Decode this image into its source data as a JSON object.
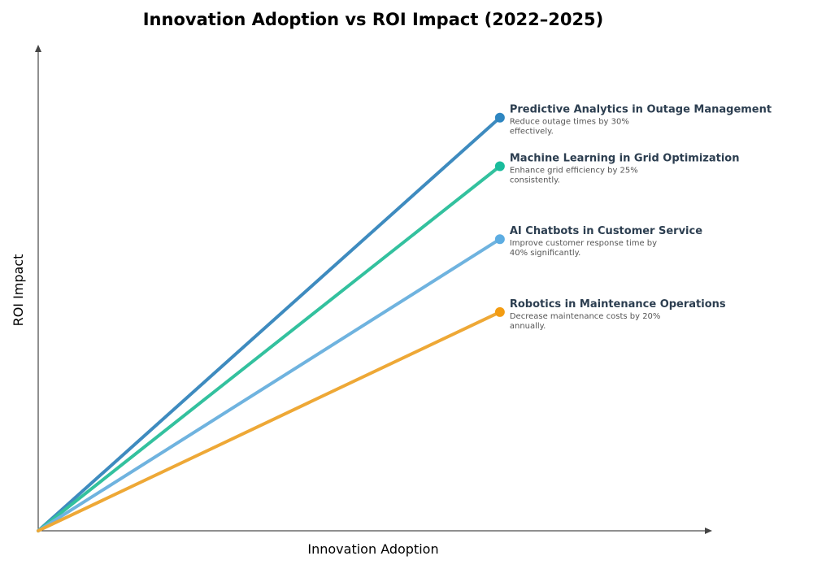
{
  "chart_data": {
    "type": "line",
    "title": "Innovation Adoption vs ROI Impact (2022–2025)",
    "xlabel": "Innovation Adoption",
    "ylabel": "ROI Impact",
    "xlim": [
      0,
      1
    ],
    "ylim": [
      0,
      1
    ],
    "grid": false,
    "legend": "none",
    "series": [
      {
        "name": "Predictive Analytics in Outage Management",
        "description_lines": [
          "Reduce outage times by 30%",
          "effectively."
        ],
        "color": "#2E86C1",
        "line_color": "#3E8BBF",
        "points": [
          [
            0,
            0
          ],
          [
            0.685,
            0.85
          ]
        ]
      },
      {
        "name": "Machine Learning in Grid Optimization",
        "description_lines": [
          "Enhance grid efficiency by 25%",
          "consistently."
        ],
        "color": "#1ABC9C",
        "line_color": "#33C19E",
        "points": [
          [
            0,
            0
          ],
          [
            0.685,
            0.75
          ]
        ]
      },
      {
        "name": "AI Chatbots in Customer Service",
        "description_lines": [
          "Improve customer response time by",
          "40% significantly."
        ],
        "color": "#5DADE2",
        "line_color": "#6FB3DF",
        "points": [
          [
            0,
            0
          ],
          [
            0.685,
            0.6
          ]
        ]
      },
      {
        "name": "Robotics in Maintenance Operations",
        "description_lines": [
          "Decrease maintenance costs by 20%",
          "annually."
        ],
        "color": "#F39C12",
        "line_color": "#EEA836",
        "points": [
          [
            0,
            0
          ],
          [
            0.685,
            0.45
          ]
        ]
      }
    ]
  }
}
